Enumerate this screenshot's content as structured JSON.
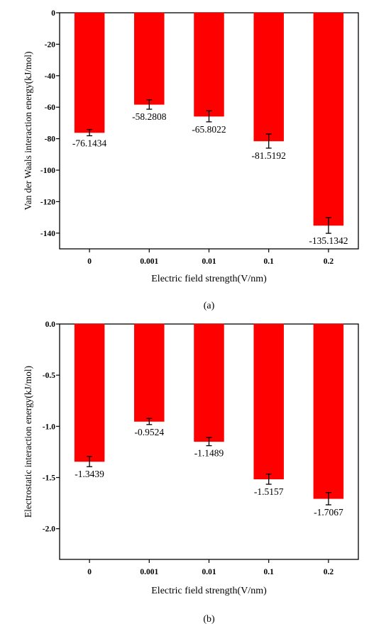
{
  "chart_data": [
    {
      "type": "bar",
      "title": "",
      "xlabel": "Electric field strength(V/nm)",
      "ylabel": "Van der Waals interaction energy(kJ/mol)",
      "panel_label": "(a)",
      "categories": [
        "0",
        "0.001",
        "0.01",
        "0.1",
        "0.2"
      ],
      "values": [
        -76.1434,
        -58.2808,
        -65.8022,
        -81.5192,
        -135.1342
      ],
      "value_labels": [
        "-76.1434",
        "-58.2808",
        "-65.8022",
        "-81.5192",
        "-135.1342"
      ],
      "errors": [
        2.0,
        3.0,
        3.5,
        4.5,
        5.0
      ],
      "ylim": [
        -150,
        0
      ],
      "yticks": [
        0,
        -20,
        -40,
        -60,
        -80,
        -100,
        -120,
        -140
      ],
      "ytick_labels": [
        "0",
        "-20",
        "-40",
        "-60",
        "-80",
        "-100",
        "-120",
        "-140"
      ],
      "bar_color": "#ff0000",
      "grid": false,
      "legend": "none"
    },
    {
      "type": "bar",
      "title": "",
      "xlabel": "Electric field strength(V/nm)",
      "ylabel": "Electrostatic interaction energy(kJ/mol)",
      "panel_label": "(b)",
      "categories": [
        "0",
        "0.001",
        "0.01",
        "0.1",
        "0.2"
      ],
      "values": [
        -1.3439,
        -0.9524,
        -1.1489,
        -1.5157,
        -1.7067
      ],
      "value_labels": [
        "-1.3439",
        "-0.9524",
        "-1.1489",
        "-1.5157",
        "-1.7067"
      ],
      "errors": [
        0.05,
        0.03,
        0.04,
        0.05,
        0.06
      ],
      "ylim": [
        -2.3,
        0
      ],
      "yticks": [
        0,
        -0.5,
        -1.0,
        -1.5,
        -2.0
      ],
      "ytick_labels": [
        "0.0",
        "-0.5",
        "-1.0",
        "-1.5",
        "-2.0"
      ],
      "bar_color": "#ff0000",
      "grid": false,
      "legend": "none"
    }
  ]
}
